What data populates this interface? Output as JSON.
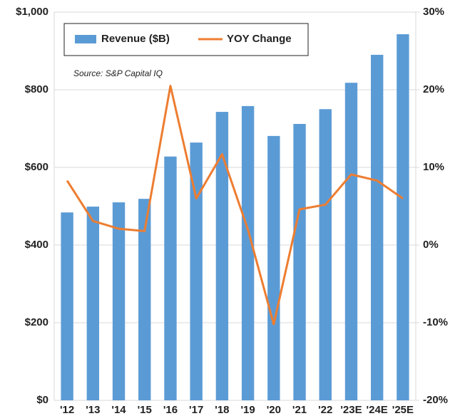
{
  "chart_data": {
    "type": "bar-line",
    "annotation": "Source: S&P Capital IQ",
    "categories": [
      "'12",
      "'13",
      "'14",
      "'15",
      "'16",
      "'17",
      "'18",
      "'19",
      "'20",
      "'21",
      "'22",
      "'23E",
      "'24E",
      "'25E"
    ],
    "series": [
      {
        "name": "Revenue ($B)",
        "type": "bar",
        "color": "#5b9bd5",
        "values": [
          484,
          499,
          510,
          519,
          628,
          664,
          743,
          758,
          681,
          712,
          750,
          818,
          890,
          943
        ]
      },
      {
        "name": "YOY Change",
        "type": "line",
        "axis": "y2",
        "color": "#ed7d31",
        "values": [
          8.3,
          3.1,
          2.1,
          1.8,
          20.5,
          6.0,
          11.7,
          2.0,
          -10.2,
          4.6,
          5.2,
          9.1,
          8.3,
          6.0
        ]
      }
    ],
    "ylim": [
      0,
      1000
    ],
    "yticks": [
      {
        "value": 0,
        "label": "$0"
      },
      {
        "value": 200,
        "label": "$200"
      },
      {
        "value": 400,
        "label": "$400"
      },
      {
        "value": 600,
        "label": "$600"
      },
      {
        "value": 800,
        "label": "$800"
      },
      {
        "value": 1000,
        "label": "$1,000"
      }
    ],
    "y2lim": [
      -20,
      30
    ],
    "y2ticks": [
      {
        "value": -20,
        "label": "-20%"
      },
      {
        "value": -10,
        "label": "-10%"
      },
      {
        "value": 0,
        "label": "0%"
      },
      {
        "value": 10,
        "label": "10%"
      },
      {
        "value": 20,
        "label": "20%"
      },
      {
        "value": 30,
        "label": "30%"
      }
    ],
    "grid": true,
    "legend": "top-left"
  }
}
